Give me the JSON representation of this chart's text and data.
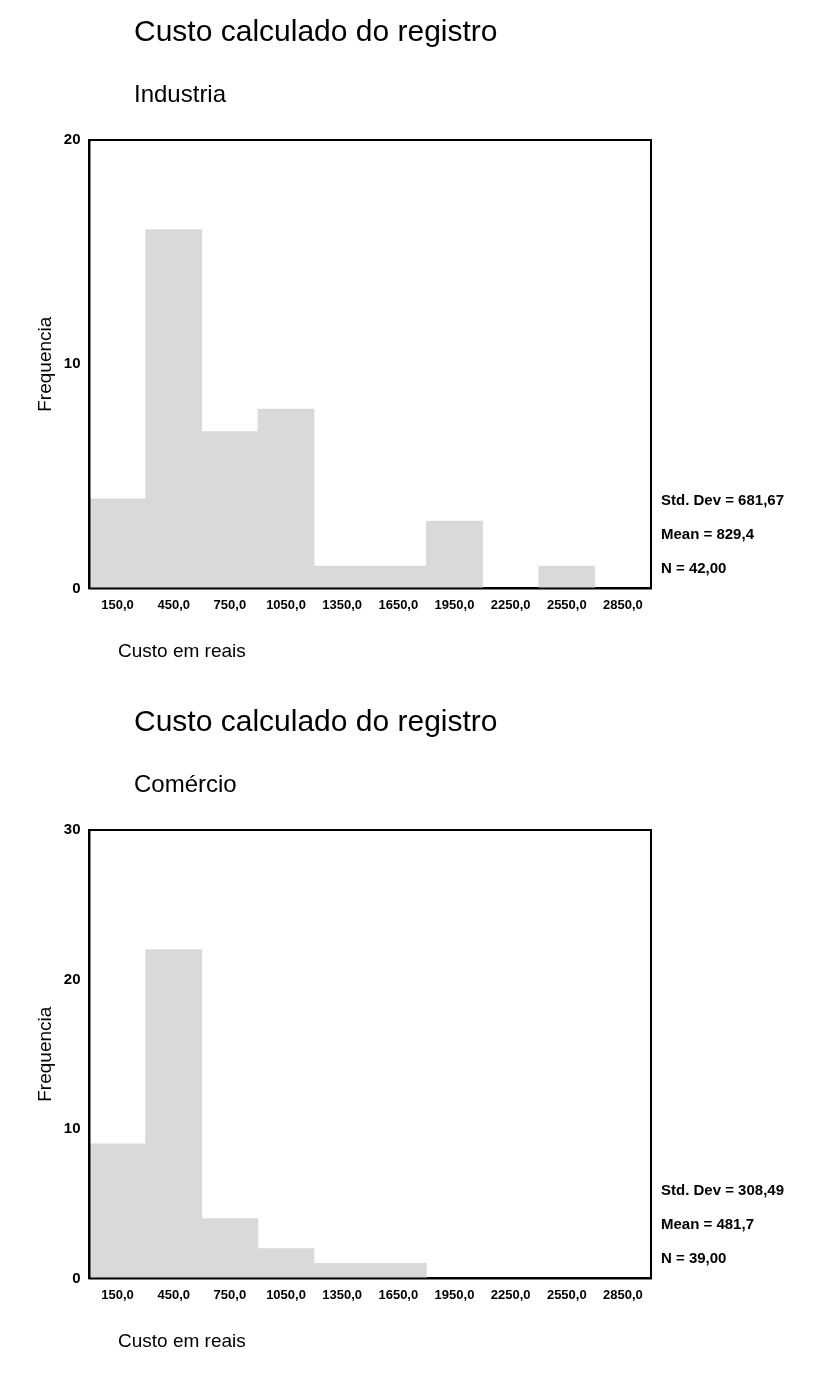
{
  "chart_data": [
    {
      "type": "histogram",
      "title": "Custo calculado do registro",
      "subtitle": "Industria",
      "xlabel": "Custo em reais",
      "ylabel": "Frequencia",
      "bins": [
        0,
        300,
        600,
        900,
        1200,
        1500,
        1800,
        2100,
        2400,
        2700,
        3000
      ],
      "values": [
        4,
        16,
        7,
        8,
        1,
        1,
        3,
        0,
        1,
        0
      ],
      "color": "#d9d9d9",
      "xlim": [
        0,
        3000
      ],
      "xticks": [
        {
          "value": 150,
          "label": "150,0"
        },
        {
          "value": 450,
          "label": "450,0"
        },
        {
          "value": 750,
          "label": "750,0"
        },
        {
          "value": 1050,
          "label": "1050,0"
        },
        {
          "value": 1350,
          "label": "1350,0"
        },
        {
          "value": 1650,
          "label": "1650,0"
        },
        {
          "value": 1950,
          "label": "1950,0"
        },
        {
          "value": 2250,
          "label": "2250,0"
        },
        {
          "value": 2550,
          "label": "2550,0"
        },
        {
          "value": 2850,
          "label": "2850,0"
        }
      ],
      "ylim": [
        0,
        20
      ],
      "yticks": [
        0,
        10,
        20
      ],
      "grid": false,
      "legend": false,
      "annotations": [
        "Std. Dev = 681,67",
        "Mean = 829,4",
        "N = 42,00"
      ]
    },
    {
      "type": "histogram",
      "title": "Custo calculado do registro",
      "subtitle": "Comércio",
      "xlabel": "Custo em reais",
      "ylabel": "Frequencia",
      "bins": [
        0,
        300,
        600,
        900,
        1200,
        1500,
        1800,
        2100,
        2400,
        2700,
        3000
      ],
      "values": [
        9,
        22,
        4,
        2,
        1,
        1,
        0,
        0,
        0,
        0
      ],
      "color": "#d9d9d9",
      "xlim": [
        0,
        3000
      ],
      "xticks": [
        {
          "value": 150,
          "label": "150,0"
        },
        {
          "value": 450,
          "label": "450,0"
        },
        {
          "value": 750,
          "label": "750,0"
        },
        {
          "value": 1050,
          "label": "1050,0"
        },
        {
          "value": 1350,
          "label": "1350,0"
        },
        {
          "value": 1650,
          "label": "1650,0"
        },
        {
          "value": 1950,
          "label": "1950,0"
        },
        {
          "value": 2250,
          "label": "2250,0"
        },
        {
          "value": 2550,
          "label": "2550,0"
        },
        {
          "value": 2850,
          "label": "2850,0"
        }
      ],
      "ylim": [
        0,
        30
      ],
      "yticks": [
        0,
        10,
        20,
        30
      ],
      "grid": false,
      "legend": false,
      "annotations": [
        "Std. Dev = 308,49",
        "Mean = 481,7",
        "N = 39,00"
      ]
    }
  ]
}
